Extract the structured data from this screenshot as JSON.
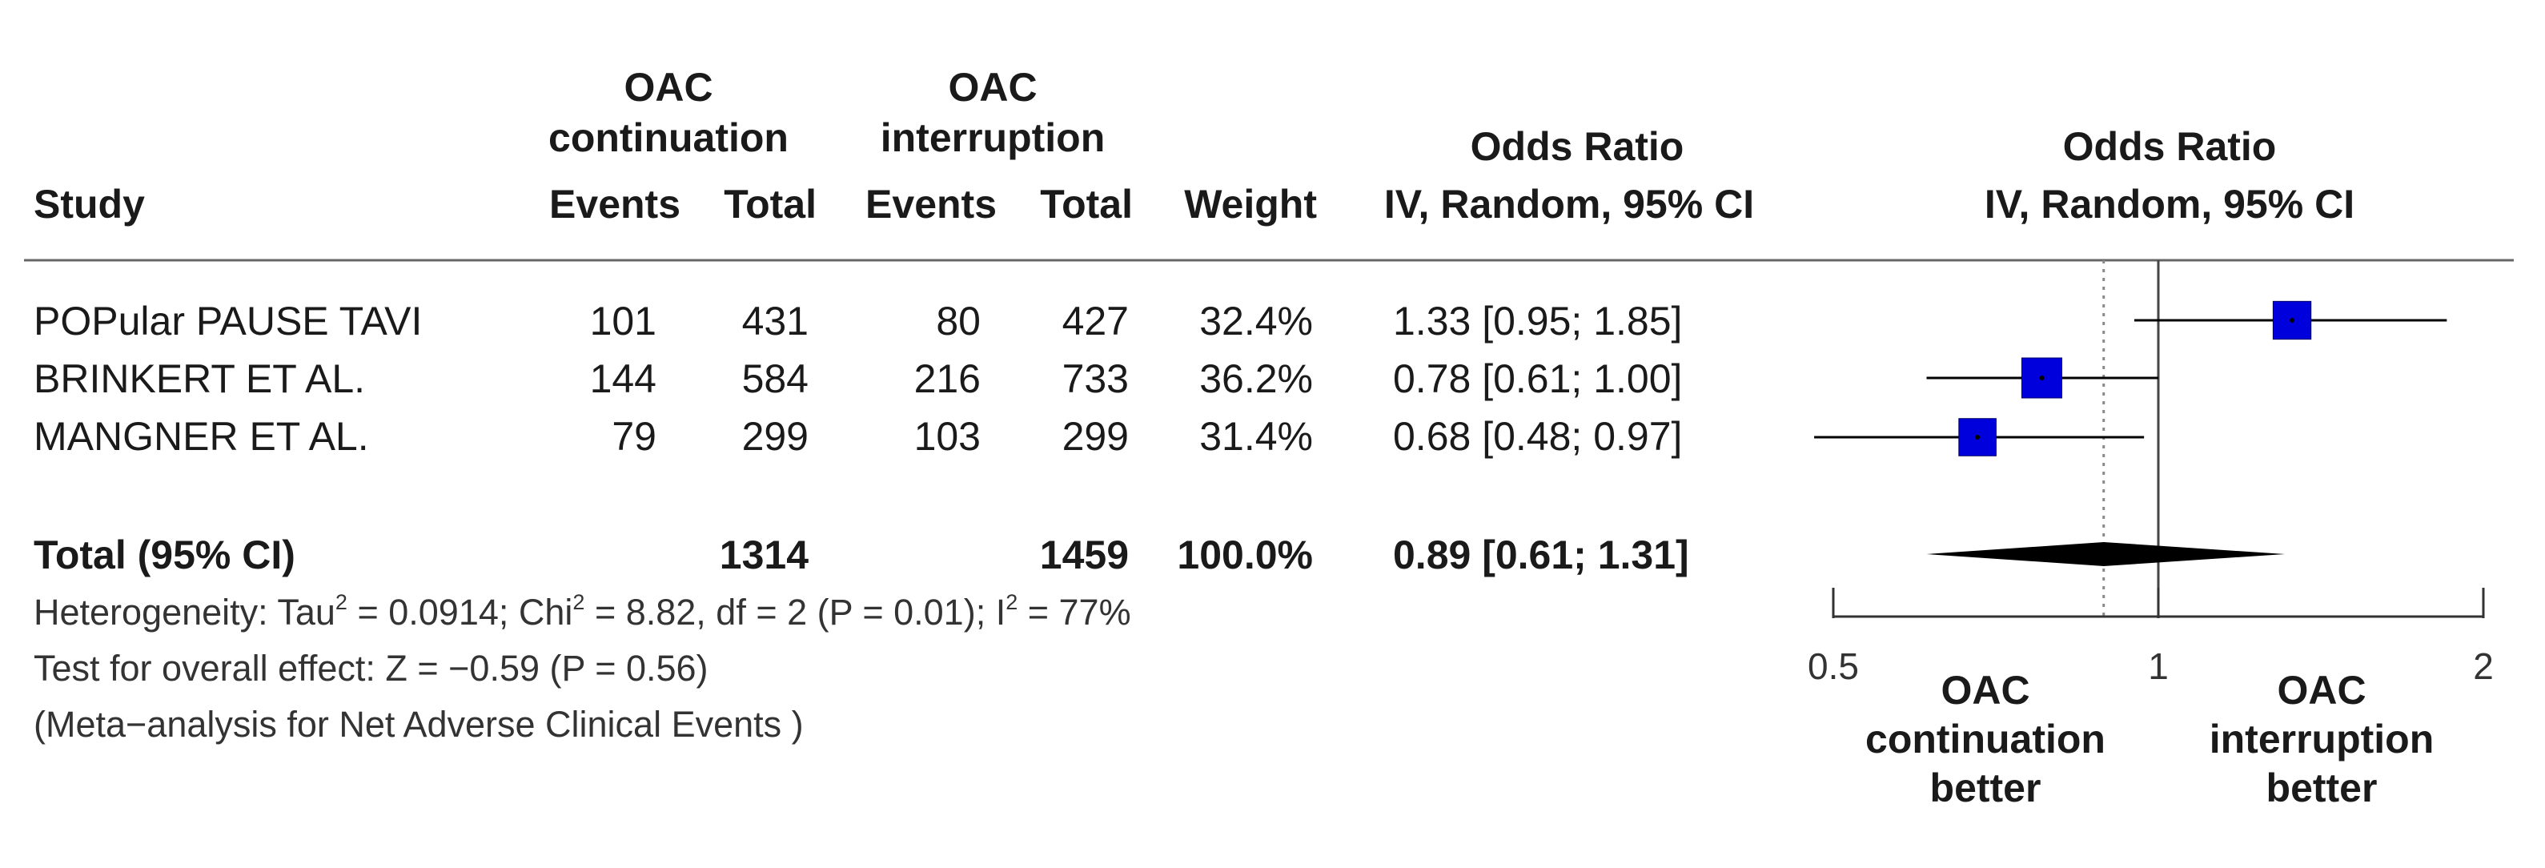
{
  "headers": {
    "study": "Study",
    "group1": [
      "OAC",
      "continuation"
    ],
    "group2": [
      "OAC",
      "interruption"
    ],
    "events": "Events",
    "total": "Total",
    "weight": "Weight",
    "or_title": "Odds Ratio",
    "or_method": "IV, Random, 95% CI",
    "plot_title": "Odds Ratio",
    "plot_method": "IV, Random, 95% CI"
  },
  "studies": [
    {
      "name": "POPular PAUSE TAVI",
      "events1": "101",
      "total1": "431",
      "events2": "80",
      "total2": "427",
      "weight": "32.4%",
      "ci_text": "1.33 [0.95; 1.85]"
    },
    {
      "name": "BRINKERT ET AL.",
      "events1": "144",
      "total1": "584",
      "events2": "216",
      "total2": "733",
      "weight": "36.2%",
      "ci_text": "0.78 [0.61; 1.00]"
    },
    {
      "name": "MANGNER ET AL.",
      "events1": "79",
      "total1": "299",
      "events2": "103",
      "total2": "299",
      "weight": "31.4%",
      "ci_text": "0.68 [0.48; 0.97]"
    }
  ],
  "total_row": {
    "label": "Total (95% CI)",
    "total1": "1314",
    "total2": "1459",
    "weight": "100.0%",
    "ci_text": "0.89 [0.61; 1.31]"
  },
  "heterogeneity": {
    "prefix": "Heterogeneity: Tau",
    "tau_val": " = 0.0914; Chi",
    "chi_val": " = 8.82, df = 2 (P = 0.01); I",
    "i_val": " = 77%",
    "sup": "2"
  },
  "overall_effect": "Test for overall effect: Z = −0.59 (P = 0.56)",
  "note": "(Meta−analysis for Net Adverse Clinical Events )",
  "favours_left": [
    "OAC",
    "continuation",
    "better"
  ],
  "favours_right": [
    "OAC",
    "interruption",
    "better"
  ],
  "chart_data": {
    "type": "forest",
    "scale": "log",
    "xlim": [
      0.5,
      2
    ],
    "ticks": [
      {
        "value": 0.5,
        "label": "0.5"
      },
      {
        "value": 1,
        "label": "1"
      },
      {
        "value": 2,
        "label": "2"
      }
    ],
    "reference_line": 1,
    "pooled_dotted_line": 0.89,
    "studies": [
      {
        "name": "POPular PAUSE TAVI",
        "or": 1.33,
        "lower": 0.95,
        "upper": 1.85,
        "weight": 32.4
      },
      {
        "name": "BRINKERT ET AL.",
        "or": 0.78,
        "lower": 0.61,
        "upper": 1.0,
        "weight": 36.2
      },
      {
        "name": "MANGNER ET AL.",
        "or": 0.68,
        "lower": 0.48,
        "upper": 0.97,
        "weight": 31.4
      }
    ],
    "pooled": {
      "or": 0.89,
      "lower": 0.61,
      "upper": 1.31
    },
    "colors": {
      "box": "#0000dd",
      "line": "#000000",
      "diamond": "#000000",
      "ref": "#888888"
    }
  }
}
